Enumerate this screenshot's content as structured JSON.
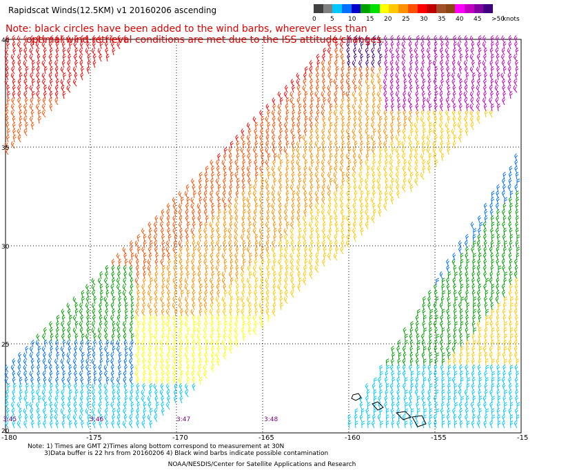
{
  "title": "Rapidscat Winds(12.5KM) v1 20160206 ascending",
  "note_line1": "Note: black circles have been added to the wind barbs, wherever less than",
  "note_line2": "optimal wind retrieval conditions are met due to the ISS attitude changes.",
  "colorbar": {
    "ticks": [
      "0",
      "5",
      "10",
      "15",
      "20",
      "25",
      "30",
      "35",
      "40",
      "45",
      ">50"
    ],
    "unit": "knots",
    "colors": [
      "#404040",
      "#808080",
      "#00c8ff",
      "#0070ff",
      "#0000c8",
      "#00a000",
      "#00e000",
      "#ffff00",
      "#ffc800",
      "#ff9000",
      "#ff5000",
      "#ff0000",
      "#c00000",
      "#a05028",
      "#8b4513",
      "#ff00ff",
      "#c000c0",
      "#8000a0",
      "#400080"
    ]
  },
  "lat_labels": [
    "40",
    "35",
    "30",
    "25",
    "20"
  ],
  "lon_labels": [
    "-180",
    "-175",
    "-170",
    "-165",
    "-160",
    "-155",
    "-15"
  ],
  "time_labels": [
    "3:45",
    "3:46",
    "3:47",
    "3:48"
  ],
  "footer": {
    "line1": "Note: 1) Times are GMT 2)Times along bottom correspond to measurement at 30N",
    "line2": "3)Data buffer is 22 hrs from 20160206 4) Black wind barbs indicate possible contamination",
    "line3": "NOAA/NESDIS/Center for Satellite Applications and Research"
  }
}
